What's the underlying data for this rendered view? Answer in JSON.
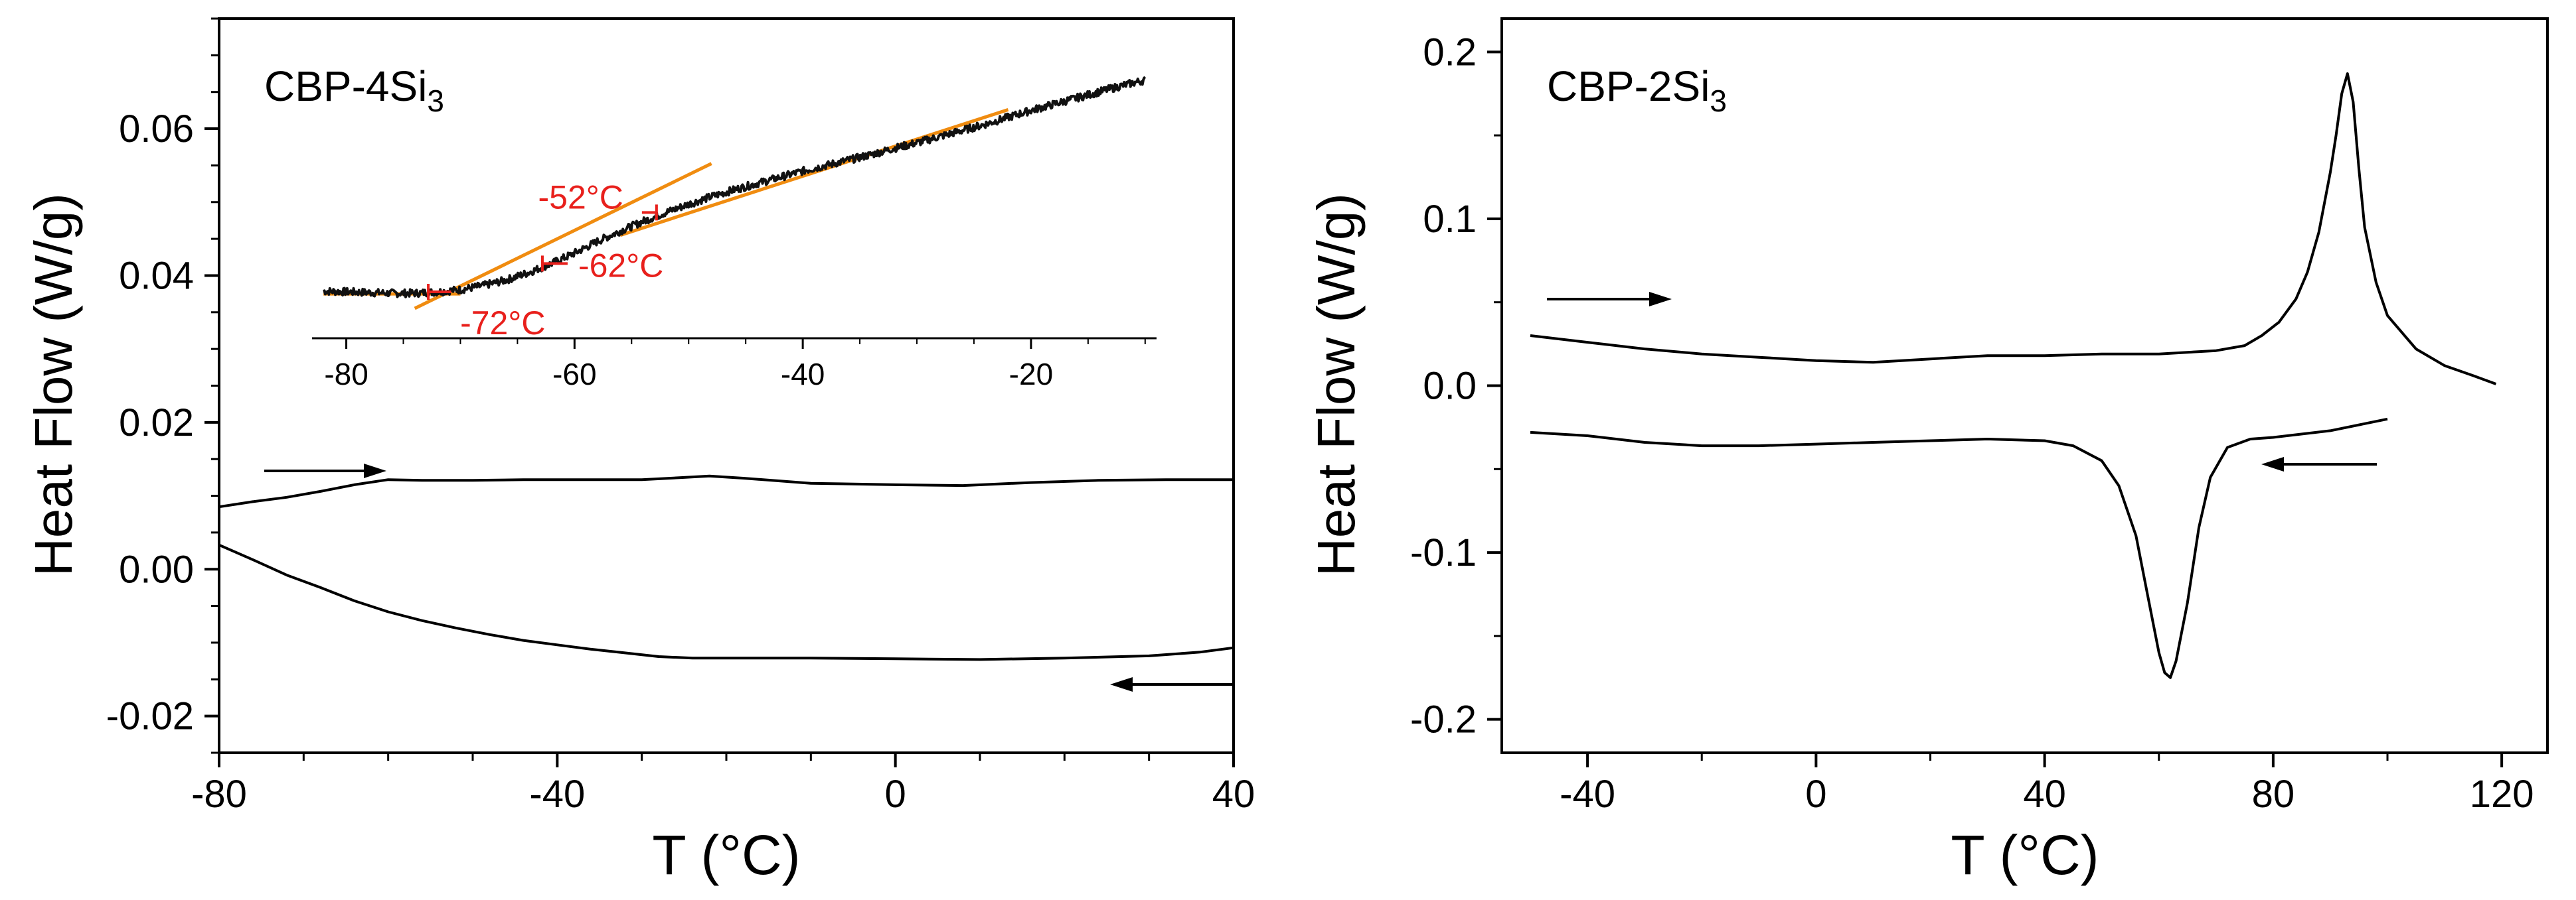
{
  "chart_data": [
    {
      "type": "line",
      "panel": "left",
      "title": "CBP-4Si",
      "title_subscript": "3",
      "xlabel": "T  (°C)",
      "ylabel": "Heat Flow  (W/g)",
      "xlim": [
        -80,
        40
      ],
      "ylim": [
        -0.025,
        0.075
      ],
      "x_tick_labels": [
        "-80",
        "-40",
        "0",
        "40"
      ],
      "y_tick_labels": [
        "-0.02",
        "0.00",
        "0.02",
        "0.04",
        "0.06"
      ],
      "series": [
        {
          "name": "heating",
          "direction_arrow": "right",
          "points": [
            [
              -80,
              0.0085
            ],
            [
              -76,
              0.0092
            ],
            [
              -72,
              0.0098
            ],
            [
              -68,
              0.0106
            ],
            [
              -64,
              0.0115
            ],
            [
              -60,
              0.0122
            ],
            [
              -56,
              0.0121
            ],
            [
              -50,
              0.0121
            ],
            [
              -44,
              0.0122
            ],
            [
              -40,
              0.0122
            ],
            [
              -36,
              0.0122
            ],
            [
              -30,
              0.0122
            ],
            [
              -25,
              0.0125
            ],
            [
              -22,
              0.0127
            ],
            [
              -18,
              0.0124
            ],
            [
              -10,
              0.0117
            ],
            [
              0,
              0.0115
            ],
            [
              8,
              0.0114
            ],
            [
              16,
              0.0118
            ],
            [
              24,
              0.0121
            ],
            [
              32,
              0.0122
            ],
            [
              40,
              0.0122
            ]
          ]
        },
        {
          "name": "cooling",
          "direction_arrow": "left",
          "points": [
            [
              -80,
              0.0033
            ],
            [
              -76,
              0.0013
            ],
            [
              -72,
              -0.0008
            ],
            [
              -68,
              -0.0025
            ],
            [
              -64,
              -0.0043
            ],
            [
              -60,
              -0.0058
            ],
            [
              -56,
              -0.007
            ],
            [
              -52,
              -0.008
            ],
            [
              -48,
              -0.0089
            ],
            [
              -44,
              -0.0097
            ],
            [
              -40,
              -0.0103
            ],
            [
              -36,
              -0.0109
            ],
            [
              -32,
              -0.0114
            ],
            [
              -28,
              -0.0119
            ],
            [
              -24,
              -0.0121
            ],
            [
              -20,
              -0.0121
            ],
            [
              -10,
              -0.0121
            ],
            [
              0,
              -0.0122
            ],
            [
              10,
              -0.0123
            ],
            [
              20,
              -0.0121
            ],
            [
              30,
              -0.0118
            ],
            [
              36,
              -0.0113
            ],
            [
              40,
              -0.0107
            ]
          ]
        }
      ],
      "inset": {
        "xlim": [
          -83,
          -9
        ],
        "x_tick_labels": [
          "-80",
          "-60",
          "-40",
          "-20"
        ],
        "trace_points": [
          [
            -82,
            0.381
          ],
          [
            -80,
            0.38
          ],
          [
            -78,
            0.379
          ],
          [
            -76,
            0.378
          ],
          [
            -74,
            0.378
          ],
          [
            -72,
            0.38
          ],
          [
            -70,
            0.383
          ],
          [
            -68,
            0.389
          ],
          [
            -66,
            0.397
          ],
          [
            -64,
            0.408
          ],
          [
            -62,
            0.421
          ],
          [
            -60,
            0.436
          ],
          [
            -58,
            0.453
          ],
          [
            -56,
            0.468
          ],
          [
            -54,
            0.482
          ],
          [
            -52,
            0.495
          ],
          [
            -50,
            0.507
          ],
          [
            -48,
            0.518
          ],
          [
            -46,
            0.528
          ],
          [
            -44,
            0.537
          ],
          [
            -42,
            0.546
          ],
          [
            -40,
            0.555
          ],
          [
            -38,
            0.563
          ],
          [
            -36,
            0.571
          ],
          [
            -34,
            0.579
          ],
          [
            -32,
            0.588
          ],
          [
            -30,
            0.596
          ],
          [
            -28,
            0.605
          ],
          [
            -26,
            0.614
          ],
          [
            -24,
            0.623
          ],
          [
            -22,
            0.633
          ],
          [
            -20,
            0.643
          ],
          [
            -18,
            0.652
          ],
          [
            -16,
            0.661
          ],
          [
            -14,
            0.67
          ],
          [
            -12,
            0.679
          ],
          [
            -10,
            0.687
          ]
        ],
        "fit_lines": [
          [
            [
              -82,
              0.377
            ],
            [
              -70,
              0.377
            ]
          ],
          [
            [
              -74,
              0.356
            ],
            [
              -48,
              0.566
            ]
          ],
          [
            [
              -56,
              0.462
            ],
            [
              -22,
              0.644
            ]
          ]
        ],
        "annotations": [
          {
            "label": "-52°C",
            "x": -52,
            "y": 0.495
          },
          {
            "label": "-62°C",
            "x": -62,
            "y": 0.421
          },
          {
            "label": "-72°C",
            "x": -72,
            "y": 0.38
          }
        ]
      }
    },
    {
      "type": "line",
      "panel": "right",
      "title": "CBP-2Si",
      "title_subscript": "3",
      "xlabel": "T  (°C)",
      "ylabel": "Heat Flow  (W/g)",
      "xlim": [
        -55,
        128
      ],
      "ylim": [
        -0.22,
        0.22
      ],
      "x_tick_labels": [
        "-40",
        "0",
        "40",
        "80",
        "120"
      ],
      "y_tick_labels": [
        "-0.2",
        "-0.1",
        "0.0",
        "0.1",
        "0.2"
      ],
      "series": [
        {
          "name": "heating",
          "direction_arrow": "right",
          "points": [
            [
              -50,
              0.03
            ],
            [
              -40,
              0.026
            ],
            [
              -30,
              0.022
            ],
            [
              -20,
              0.019
            ],
            [
              -10,
              0.017
            ],
            [
              0,
              0.015
            ],
            [
              10,
              0.014
            ],
            [
              20,
              0.016
            ],
            [
              30,
              0.018
            ],
            [
              40,
              0.018
            ],
            [
              50,
              0.019
            ],
            [
              60,
              0.019
            ],
            [
              70,
              0.021
            ],
            [
              75,
              0.024
            ],
            [
              78,
              0.03
            ],
            [
              81,
              0.038
            ],
            [
              84,
              0.052
            ],
            [
              86,
              0.068
            ],
            [
              88,
              0.092
            ],
            [
              90,
              0.128
            ],
            [
              91,
              0.15
            ],
            [
              92,
              0.175
            ],
            [
              93,
              0.187
            ],
            [
              94,
              0.17
            ],
            [
              95,
              0.13
            ],
            [
              96,
              0.095
            ],
            [
              98,
              0.062
            ],
            [
              100,
              0.042
            ],
            [
              105,
              0.022
            ],
            [
              110,
              0.012
            ],
            [
              115,
              0.006
            ],
            [
              119,
              0.001
            ]
          ]
        },
        {
          "name": "cooling",
          "direction_arrow": "left",
          "points": [
            [
              -50,
              -0.028
            ],
            [
              -40,
              -0.03
            ],
            [
              -30,
              -0.034
            ],
            [
              -20,
              -0.036
            ],
            [
              -10,
              -0.036
            ],
            [
              0,
              -0.035
            ],
            [
              10,
              -0.034
            ],
            [
              20,
              -0.033
            ],
            [
              30,
              -0.032
            ],
            [
              40,
              -0.033
            ],
            [
              45,
              -0.036
            ],
            [
              50,
              -0.045
            ],
            [
              53,
              -0.06
            ],
            [
              56,
              -0.09
            ],
            [
              58,
              -0.125
            ],
            [
              60,
              -0.16
            ],
            [
              61,
              -0.172
            ],
            [
              62,
              -0.175
            ],
            [
              63,
              -0.165
            ],
            [
              65,
              -0.13
            ],
            [
              67,
              -0.085
            ],
            [
              69,
              -0.055
            ],
            [
              72,
              -0.037
            ],
            [
              76,
              -0.032
            ],
            [
              80,
              -0.031
            ],
            [
              90,
              -0.027
            ],
            [
              100,
              -0.02
            ]
          ]
        }
      ]
    }
  ]
}
